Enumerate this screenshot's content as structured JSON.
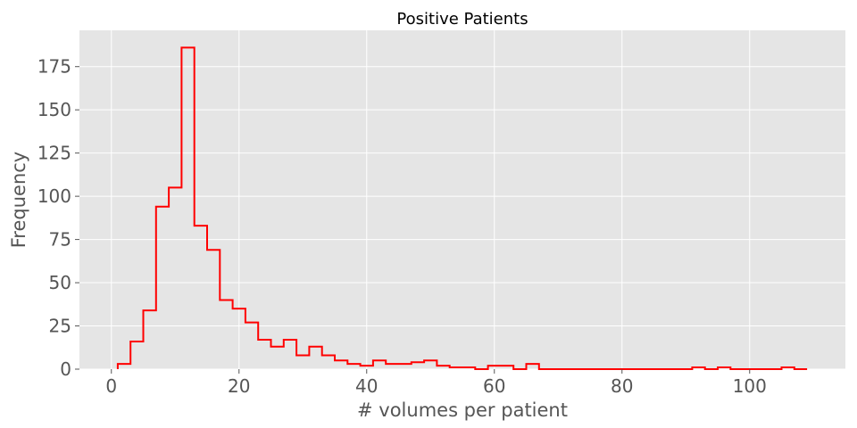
{
  "chart_data": {
    "type": "histogram",
    "title": "Positive Patients",
    "xlabel": "# volumes per patient",
    "ylabel": "Frequency",
    "xlim": [
      -5,
      115
    ],
    "ylim": [
      0,
      196
    ],
    "xticks": [
      0,
      20,
      40,
      60,
      80,
      100
    ],
    "yticks": [
      0,
      25,
      50,
      75,
      100,
      125,
      150,
      175
    ],
    "grid": true,
    "bin_start": 1,
    "bin_width": 2,
    "values": [
      3,
      16,
      34,
      94,
      105,
      186,
      83,
      69,
      40,
      35,
      27,
      17,
      13,
      17,
      8,
      13,
      8,
      5,
      3,
      2,
      5,
      3,
      3,
      4,
      5,
      2,
      1,
      1,
      0,
      2,
      2,
      0,
      3,
      0,
      0,
      0,
      0,
      0,
      0,
      0,
      0,
      0,
      0,
      0,
      0,
      1,
      0,
      1,
      0,
      0,
      0,
      0,
      1,
      0
    ],
    "colors": {
      "line": "#ff0000",
      "background": "#e5e5e5",
      "grid": "#ffffff"
    }
  }
}
